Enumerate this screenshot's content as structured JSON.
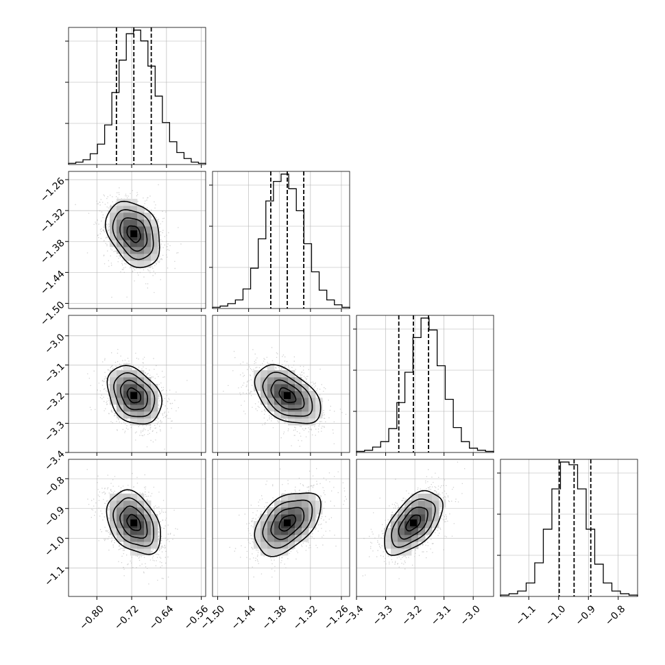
{
  "chart_data": {
    "type": "corner",
    "parameters": [
      {
        "range": [
          -0.865,
          -0.55
        ],
        "ticks": [
          -0.8,
          -0.72,
          -0.64,
          -0.56
        ],
        "tick_labels": [
          "−0.80",
          "−0.72",
          "−0.64",
          "−0.56"
        ],
        "quantiles": [
          -0.755,
          -0.715,
          -0.675
        ],
        "hist": [
          1,
          2,
          4,
          9,
          17,
          33,
          60,
          87,
          109,
          112,
          103,
          82,
          57,
          35,
          19,
          10,
          5,
          2,
          1
        ]
      },
      {
        "range": [
          -1.51,
          -1.244
        ],
        "ticks": [
          -1.5,
          -1.44,
          -1.38,
          -1.32,
          -1.26
        ],
        "tick_labels": [
          "−1.50",
          "−1.44",
          "−1.38",
          "−1.32",
          "−1.26"
        ],
        "quantiles": [
          -1.397,
          -1.365,
          -1.333
        ],
        "hist": [
          1,
          2,
          4,
          7,
          16,
          33,
          57,
          88,
          104,
          110,
          98,
          80,
          53,
          30,
          15,
          7,
          3,
          1
        ]
      },
      {
        "range": [
          -3.4,
          -2.93
        ],
        "ticks": [
          -3.4,
          -3.3,
          -3.2,
          -3.1,
          -3.0
        ],
        "tick_labels": [
          "−3.4",
          "−3.3",
          "−3.2",
          "−3.1",
          "−3.0"
        ],
        "quantiles": [
          -3.255,
          -3.205,
          -3.153
        ],
        "hist": [
          1,
          2,
          5,
          10,
          22,
          46,
          74,
          106,
          124,
          113,
          80,
          49,
          23,
          10,
          4,
          2,
          1
        ]
      },
      {
        "range": [
          -1.195,
          -0.735
        ],
        "ticks": [
          -1.1,
          -1.0,
          -0.9,
          -0.8
        ],
        "tick_labels": [
          "−1.1",
          "−1.0",
          "−0.9",
          "−0.8"
        ],
        "quantiles": [
          -0.998,
          -0.948,
          -0.892
        ],
        "hist": [
          1,
          2,
          4,
          10,
          25,
          50,
          80,
          100,
          98,
          80,
          50,
          24,
          10,
          4,
          2,
          1
        ]
      }
    ],
    "pairs": [
      {
        "x": 0,
        "y": 1,
        "center": [
          -0.715,
          -1.365
        ],
        "sigma": [
          0.031,
          0.032
        ],
        "rho": -0.3
      },
      {
        "x": 0,
        "y": 2,
        "center": [
          -0.715,
          -3.205
        ],
        "sigma": [
          0.031,
          0.05
        ],
        "rho": -0.3
      },
      {
        "x": 1,
        "y": 2,
        "center": [
          -1.365,
          -3.205
        ],
        "sigma": [
          0.032,
          0.05
        ],
        "rho": -0.45
      },
      {
        "x": 0,
        "y": 3,
        "center": [
          -0.715,
          -0.948
        ],
        "sigma": [
          0.031,
          0.053
        ],
        "rho": -0.35
      },
      {
        "x": 1,
        "y": 3,
        "center": [
          -1.365,
          -0.948
        ],
        "sigma": [
          0.032,
          0.053
        ],
        "rho": 0.45
      },
      {
        "x": 2,
        "y": 3,
        "center": [
          -3.205,
          -0.948
        ],
        "sigma": [
          0.05,
          0.053
        ],
        "rho": 0.55
      }
    ],
    "contour_levels_sigma": [
      0.5,
      1.0,
      1.5,
      2.0
    ],
    "grid": true,
    "colors": {
      "line": "#000000",
      "scatter": "#b0b0b0",
      "grid": "#b0b0b0",
      "hist2d_dark": "#3a3a3a"
    }
  }
}
